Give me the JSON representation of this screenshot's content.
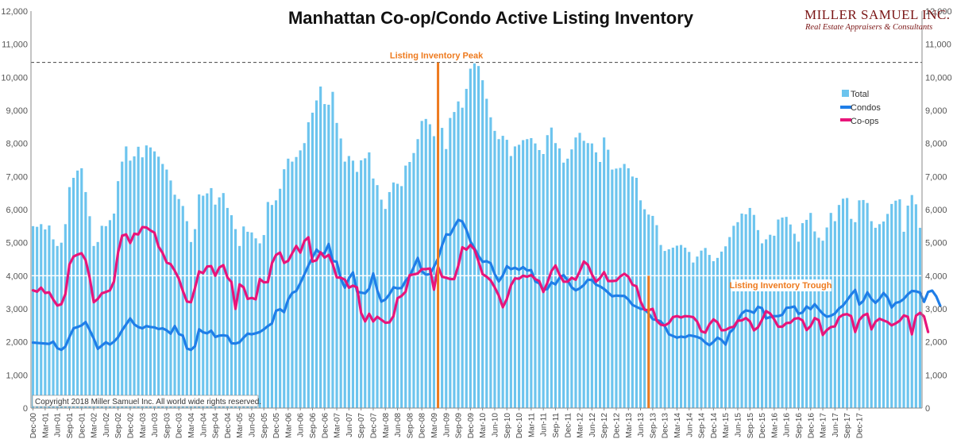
{
  "chart_data": {
    "type": "bar",
    "title": "Manhattan Co-op/Condo Active Listing Inventory",
    "brand": "MILLER SAMUEL INC.",
    "brand_subtitle": "Real Estate Appraisers & Consultants",
    "copyright": "Copyright 2018 Miller Samuel Inc. All world wide rights reserved.",
    "ylim": [
      0,
      12000
    ],
    "yticks": [
      "0",
      "1,000",
      "2,000",
      "3,000",
      "4,000",
      "5,000",
      "6,000",
      "7,000",
      "8,000",
      "9,000",
      "10,000",
      "11,000",
      "12,000"
    ],
    "ytick_values": [
      0,
      1000,
      2000,
      3000,
      4000,
      5000,
      6000,
      7000,
      8000,
      9000,
      10000,
      11000,
      12000
    ],
    "x_start": "Dec-00",
    "x_end": "Dec-17",
    "x_tick_labels": [
      "Dec-00",
      "Mar-01",
      "Jun-01",
      "Sep-01",
      "Dec-01",
      "Mar-02",
      "Jun-02",
      "Sep-02",
      "Dec-02",
      "Mar-03",
      "Jun-03",
      "Sep-03",
      "Dec-03",
      "Mar-04",
      "Jun-04",
      "Sep-04",
      "Dec-04",
      "Mar-05",
      "Jun-05",
      "Sep-05",
      "Dec-05",
      "Mar-06",
      "Jun-06",
      "Sep-06",
      "Dec-06",
      "Mar-07",
      "Jun-07",
      "Sep-07",
      "Dec-07",
      "Mar-08",
      "Jun-08",
      "Sep-08",
      "Dec-08",
      "Mar-09",
      "Jun-09",
      "Sep-09",
      "Dec-09",
      "Mar-10",
      "Jun-10",
      "Sep-10",
      "Dec-10",
      "Mar-11",
      "Jun-11",
      "Sep-11",
      "Dec-11",
      "Mar-12",
      "Jun-12",
      "Sep-12",
      "Dec-12",
      "Mar-13",
      "Jun-13",
      "Sep-13",
      "Dec-13",
      "Mar-14",
      "Jun-14",
      "Sep-14",
      "Dec-14",
      "Mar-15",
      "Jun-15",
      "Sep-15",
      "Dec-15",
      "Mar-16",
      "Jun-16",
      "Sep-16",
      "Dec-16",
      "Mar-17",
      "Jun-17",
      "Sep-17",
      "Dec-17"
    ],
    "peak_line_value": 10450,
    "reference_line_value": 4000,
    "series": [
      {
        "name": "Total",
        "kind": "bar",
        "color": "#6cc4ee",
        "values": [
          5500,
          5480,
          5560,
          5400,
          5520,
          5100,
          4900,
          5000,
          5560,
          6680,
          6960,
          7180,
          7250,
          6530,
          5800,
          4900,
          5020,
          5510,
          5500,
          5680,
          5880,
          6860,
          7450,
          7910,
          7480,
          7610,
          7900,
          7580,
          7940,
          7880,
          7760,
          7600,
          7380,
          7210,
          6880,
          6450,
          6320,
          6110,
          5650,
          5020,
          5410,
          6460,
          6420,
          6490,
          6650,
          6150,
          6370,
          6500,
          6050,
          5830,
          5410,
          4900,
          5490,
          5330,
          5310,
          5130,
          4980,
          5230,
          6230,
          6140,
          6280,
          6630,
          7220,
          7540,
          7450,
          7590,
          7790,
          8010,
          8640,
          8930,
          9300,
          9720,
          9190,
          9170,
          9560,
          8620,
          8150,
          7450,
          7620,
          7480,
          7140,
          7490,
          7550,
          7730,
          6940,
          6740,
          6300,
          6020,
          6530,
          6820,
          6780,
          6710,
          7330,
          7440,
          7710,
          8130,
          8680,
          8740,
          8580,
          8220,
          8720,
          8470,
          7830,
          8770,
          8950,
          9270,
          9080,
          9650,
          10260,
          10420,
          10340,
          9910,
          9350,
          8790,
          8380,
          8130,
          8230,
          8110,
          7620,
          7910,
          7960,
          8100,
          8130,
          8160,
          8000,
          7800,
          7680,
          8250,
          8480,
          8010,
          7850,
          7420,
          7540,
          7820,
          8180,
          8320,
          8080,
          8010,
          8000,
          7730,
          7440,
          8180,
          7810,
          7210,
          7240,
          7260,
          7380,
          7250,
          7000,
          6960,
          6280,
          6010,
          5850,
          5810,
          5530,
          4930,
          4750,
          4800,
          4850,
          4910,
          4930,
          4850,
          4720,
          4400,
          4580,
          4760,
          4840,
          4630,
          4440,
          4540,
          4730,
          4890,
          5170,
          5510,
          5620,
          5880,
          5860,
          6050,
          5840,
          5380,
          4980,
          5100,
          5240,
          5210,
          5700,
          5760,
          5780,
          5550,
          5270,
          5030,
          5590,
          5690,
          5900,
          5340,
          5150,
          5060,
          5460,
          5900,
          5650,
          6140,
          6330,
          6350,
          5720,
          5620,
          6280,
          6290,
          6200,
          5650,
          5450,
          5560,
          5640,
          5870,
          6170,
          6270,
          6310,
          5330,
          6120,
          6440,
          6160,
          5450
        ]
      },
      {
        "name": "Condos",
        "kind": "line",
        "color": "#1f7ee8",
        "values": [
          1980,
          1970,
          1960,
          1950,
          1940,
          2010,
          1810,
          1760,
          1860,
          2150,
          2410,
          2450,
          2500,
          2600,
          2360,
          2100,
          1790,
          1890,
          1990,
          1920,
          2010,
          2140,
          2350,
          2530,
          2710,
          2530,
          2450,
          2410,
          2480,
          2450,
          2440,
          2390,
          2410,
          2350,
          2250,
          2480,
          2240,
          2190,
          1800,
          1760,
          1870,
          2380,
          2290,
          2260,
          2340,
          2150,
          2190,
          2200,
          2180,
          1960,
          1950,
          1990,
          2130,
          2250,
          2230,
          2260,
          2300,
          2380,
          2480,
          2560,
          2940,
          2990,
          2900,
          3280,
          3480,
          3540,
          3780,
          4040,
          4310,
          4550,
          4790,
          4670,
          4680,
          4960,
          4450,
          4420,
          3910,
          3640,
          3920,
          4100,
          3520,
          3490,
          3470,
          3610,
          4070,
          3560,
          3220,
          3280,
          3440,
          3650,
          3620,
          3630,
          3850,
          3980,
          4260,
          4540,
          4140,
          4030,
          4050,
          4270,
          4520,
          4920,
          5250,
          5240,
          5480,
          5690,
          5640,
          5390,
          5040,
          4830,
          4600,
          4420,
          4440,
          4380,
          4050,
          3830,
          4010,
          4290,
          4200,
          4240,
          4180,
          4260,
          4160,
          4170,
          3830,
          3770,
          3580,
          3600,
          3800,
          3740,
          3940,
          4020,
          3860,
          3650,
          3560,
          3620,
          3720,
          3880,
          3870,
          3730,
          3680,
          3600,
          3490,
          3380,
          3400,
          3390,
          3390,
          3280,
          3120,
          3060,
          3000,
          2990,
          2860,
          2690,
          2660,
          2620,
          2470,
          2230,
          2180,
          2130,
          2160,
          2140,
          2200,
          2180,
          2150,
          2100,
          1980,
          1900,
          2000,
          2130,
          2060,
          1920,
          2280,
          2400,
          2650,
          2860,
          2950,
          2930,
          2880,
          3060,
          3020,
          2710,
          2750,
          2780,
          2780,
          2820,
          3030,
          3040,
          3070,
          2850,
          2890,
          3070,
          2990,
          3140,
          2990,
          2850,
          2760,
          2790,
          2860,
          3010,
          3100,
          3260,
          3430,
          3570,
          3130,
          3240,
          3500,
          3300,
          3180,
          3300,
          3480,
          3340,
          3040,
          3180,
          3210,
          3300,
          3440,
          3540,
          3530,
          3490,
          3210,
          3510,
          3550,
          3380,
          3090
        ]
      },
      {
        "name": "Co-ops",
        "kind": "line",
        "color": "#e8157a",
        "values": [
          3560,
          3520,
          3640,
          3480,
          3500,
          3280,
          3100,
          3140,
          3450,
          4340,
          4580,
          4640,
          4680,
          4470,
          3940,
          3200,
          3300,
          3470,
          3510,
          3560,
          3830,
          4700,
          5210,
          5250,
          4990,
          5270,
          5250,
          5470,
          5460,
          5370,
          5300,
          4880,
          4690,
          4400,
          4350,
          4150,
          3910,
          3540,
          3220,
          3200,
          3630,
          4130,
          4080,
          4280,
          4290,
          4000,
          4250,
          4320,
          3950,
          3810,
          3000,
          3740,
          3650,
          3300,
          3330,
          3290,
          3900,
          3800,
          3810,
          4380,
          4630,
          4700,
          4390,
          4450,
          4680,
          4900,
          4700,
          5050,
          5160,
          4430,
          4470,
          4710,
          4550,
          4630,
          4350,
          3950,
          3940,
          3880,
          3640,
          3700,
          3650,
          2880,
          2620,
          2850,
          2620,
          2760,
          2670,
          2580,
          2590,
          2780,
          3320,
          3390,
          3520,
          4020,
          4040,
          4070,
          4200,
          4200,
          4220,
          3580,
          4280,
          3970,
          3940,
          3900,
          3900,
          4300,
          4860,
          4790,
          4930,
          4790,
          4430,
          4050,
          3970,
          3860,
          3650,
          3400,
          3050,
          3300,
          3710,
          3920,
          3910,
          4000,
          3970,
          4020,
          3900,
          3840,
          3510,
          3790,
          4140,
          4310,
          4030,
          3820,
          3820,
          3940,
          3880,
          4140,
          4430,
          4330,
          4040,
          3820,
          3930,
          4110,
          3840,
          3840,
          3850,
          3980,
          4060,
          3970,
          3730,
          3680,
          3230,
          2970,
          2960,
          3000,
          2640,
          2520,
          2500,
          2570,
          2750,
          2780,
          2740,
          2780,
          2770,
          2750,
          2610,
          2320,
          2280,
          2530,
          2680,
          2590,
          2350,
          2360,
          2430,
          2460,
          2640,
          2650,
          2720,
          2620,
          2350,
          2440,
          2670,
          2930,
          2860,
          2680,
          2460,
          2460,
          2570,
          2580,
          2700,
          2720,
          2650,
          2360,
          2480,
          2720,
          2660,
          2210,
          2360,
          2450,
          2470,
          2740,
          2820,
          2840,
          2780,
          2300,
          2660,
          2800,
          2850,
          2380,
          2610,
          2700,
          2650,
          2600,
          2500,
          2560,
          2640,
          2800,
          2760,
          2230,
          2790,
          2880,
          2770,
          2300
        ]
      }
    ],
    "legend": [
      "Total",
      "Condos",
      "Co-ops"
    ],
    "legend_position": "right",
    "annotations": [
      {
        "text": "Listing Inventory Peak",
        "at": "Apr-09",
        "color": "#ee7a1e"
      },
      {
        "text": "Listing Inventory Trough",
        "at": "Aug-13",
        "color": "#ee7a1e"
      }
    ],
    "grid": false
  }
}
